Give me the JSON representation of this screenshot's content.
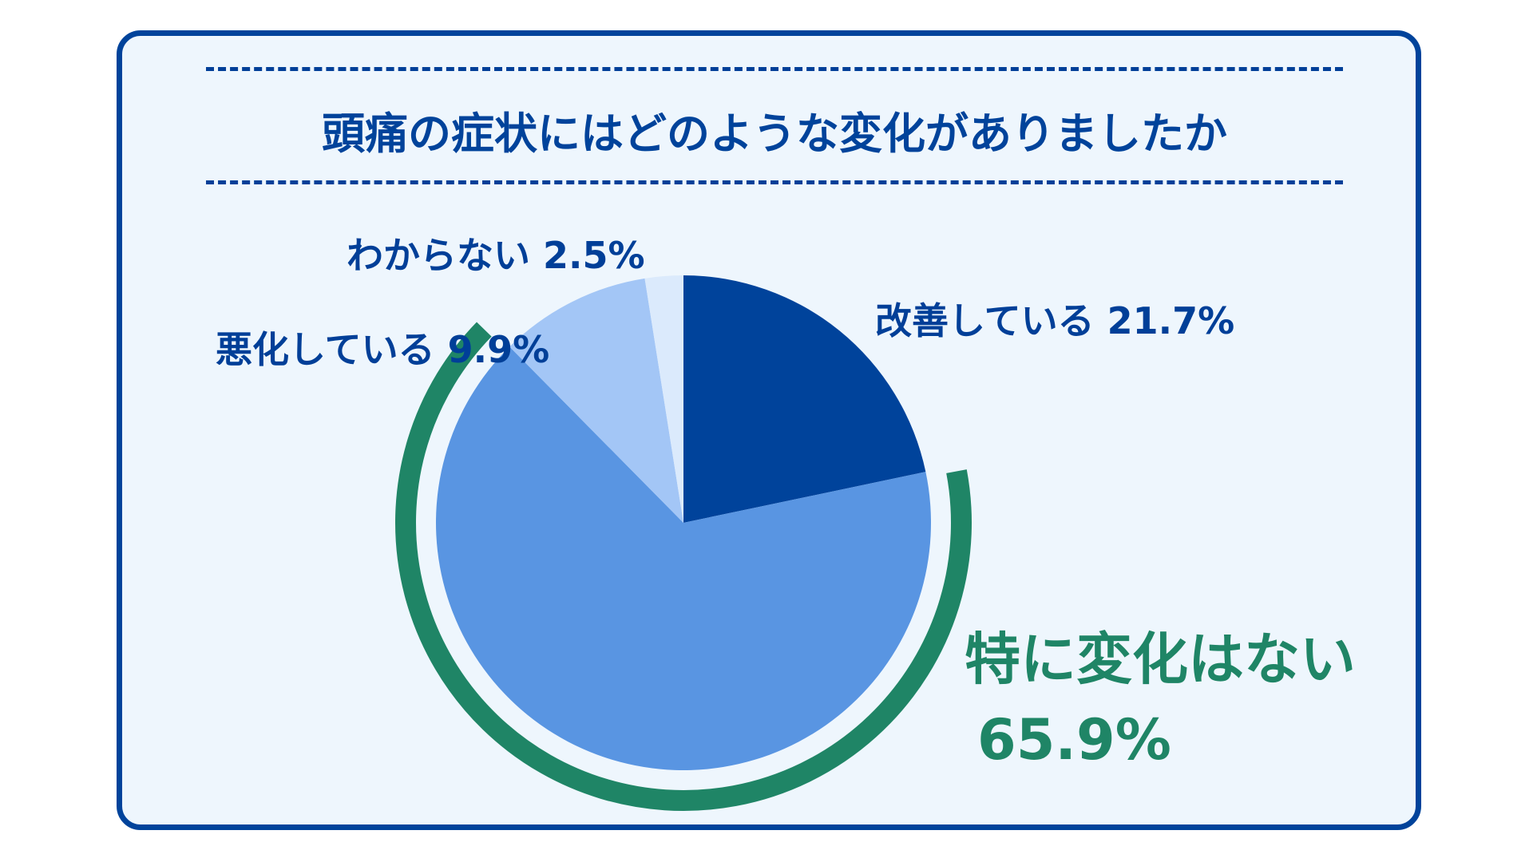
{
  "chart_data": {
    "type": "pie",
    "title": "頭痛の症状にはどのような変化がありましたか",
    "slices": [
      {
        "label": "改善している",
        "value": 21.7,
        "value_label": "21.7%",
        "color": "#00439b"
      },
      {
        "label": "特に変化はない",
        "value": 65.9,
        "value_label": "65.9%",
        "color": "#5995e2"
      },
      {
        "label": "悪化している",
        "value": 9.9,
        "value_label": "9.9%",
        "color": "#a3c6f6"
      },
      {
        "label": "わからない",
        "value": 2.5,
        "value_label": "2.5%",
        "color": "#dbeafc"
      }
    ],
    "highlight_slice": "特に変化はない",
    "highlight_color": "#1f8566",
    "start": "12 o'clock",
    "direction": "clockwise"
  }
}
